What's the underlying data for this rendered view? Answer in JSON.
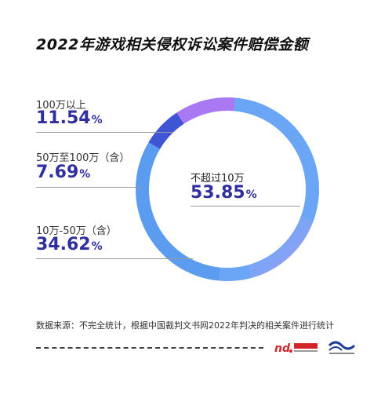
{
  "chart_data": {
    "type": "pie",
    "title": "2022年游戏相关侵权诉讼案件赔偿金额",
    "segments": [
      {
        "label": "100万以上",
        "value": 11.54,
        "color": "#a879f2"
      },
      {
        "label": "50万至100万（含）",
        "value": 7.69,
        "color": "#3e55d6"
      },
      {
        "label": "10万-50万（含）",
        "value": 34.62,
        "color": "#5b9cf0"
      },
      {
        "label": "不超过10万",
        "value": 53.85,
        "color": "#6aa6f5"
      }
    ],
    "unit": "%",
    "source": "数据来源：不完全统计，根据中国裁判文书网2022年判决的相关案件进行统计"
  },
  "logos": {
    "logo1_icon": "nd-logo-icon",
    "logo2_icon": "wave-logo-icon"
  }
}
